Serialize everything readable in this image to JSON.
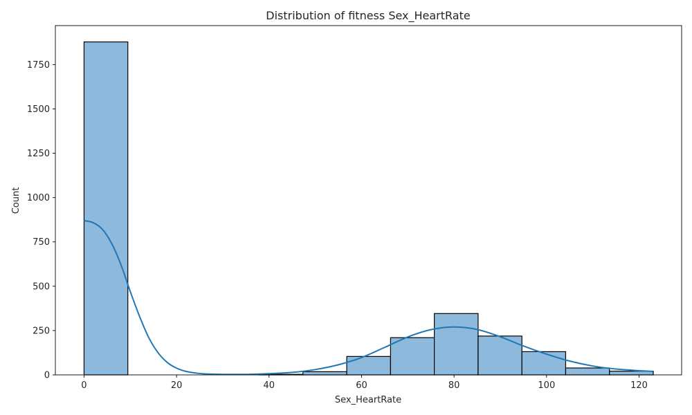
{
  "chart_data": {
    "type": "bar",
    "subtype": "histogram-with-kde",
    "title": "Distribution of fitness Sex_HeartRate",
    "xlabel": "Sex_HeartRate",
    "ylabel": "Count",
    "xlim": [
      -6.2,
      129.2
    ],
    "ylim": [
      0,
      1970
    ],
    "x_ticks": [
      0,
      20,
      40,
      60,
      80,
      100,
      120
    ],
    "y_ticks": [
      0,
      250,
      500,
      750,
      1000,
      1250,
      1500,
      1750
    ],
    "grid": false,
    "legend": "none",
    "bar_color": "#8db9dc",
    "bar_edge_color": "#000000",
    "kde_color": "#1f77b4",
    "bins": [
      {
        "x0": 0,
        "x1": 9.47,
        "count": 1878
      },
      {
        "x0": 9.47,
        "x1": 18.93,
        "count": 0
      },
      {
        "x0": 18.93,
        "x1": 28.4,
        "count": 0
      },
      {
        "x0": 28.4,
        "x1": 37.87,
        "count": 0
      },
      {
        "x0": 37.87,
        "x1": 47.33,
        "count": 3
      },
      {
        "x0": 47.33,
        "x1": 56.8,
        "count": 18
      },
      {
        "x0": 56.8,
        "x1": 66.27,
        "count": 104
      },
      {
        "x0": 66.27,
        "x1": 75.73,
        "count": 210
      },
      {
        "x0": 75.73,
        "x1": 85.2,
        "count": 346
      },
      {
        "x0": 85.2,
        "x1": 94.67,
        "count": 219
      },
      {
        "x0": 94.67,
        "x1": 104.13,
        "count": 131
      },
      {
        "x0": 104.13,
        "x1": 113.6,
        "count": 39
      },
      {
        "x0": 113.6,
        "x1": 123.07,
        "count": 21
      }
    ],
    "kde": {
      "x": [
        0,
        2,
        4,
        6,
        8,
        10,
        12,
        14,
        16,
        18,
        20,
        22,
        24,
        26,
        28,
        30,
        35,
        40,
        45,
        50,
        55,
        60,
        65,
        70,
        75,
        80,
        85,
        90,
        95,
        100,
        105,
        110,
        115,
        120,
        123
      ],
      "y": [
        870,
        858,
        820,
        740,
        620,
        470,
        330,
        210,
        125,
        70,
        38,
        20,
        11,
        6,
        4,
        3,
        3,
        7,
        14,
        30,
        57,
        98,
        155,
        214,
        255,
        270,
        256,
        215,
        163,
        117,
        78,
        50,
        33,
        24,
        20
      ]
    }
  }
}
